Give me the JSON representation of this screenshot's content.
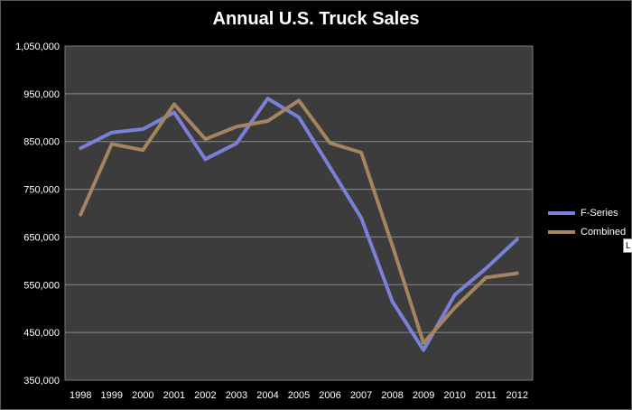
{
  "chart_data": {
    "type": "line",
    "title": "Annual U.S. Truck Sales",
    "x": [
      "1998",
      "1999",
      "2000",
      "2001",
      "2002",
      "2003",
      "2004",
      "2005",
      "2006",
      "2007",
      "2008",
      "2009",
      "2010",
      "2011",
      "2012"
    ],
    "series": [
      {
        "name": "F-Series",
        "color": "#7a80d8",
        "values": [
          836000,
          869000,
          876000,
          911000,
          813000,
          846000,
          940000,
          901000,
          796000,
          690000,
          515000,
          413000,
          529000,
          584000,
          645000
        ]
      },
      {
        "name": "Combined",
        "color": "#a48560",
        "values": [
          697000,
          845000,
          832000,
          928000,
          855000,
          881000,
          893000,
          936000,
          847000,
          827000,
          632000,
          428000,
          502000,
          565000,
          574000
        ]
      }
    ],
    "y_ticks": [
      "1,050,000",
      "950,000",
      "850,000",
      "750,000",
      "650,000",
      "550,000",
      "450,000",
      "350,000"
    ],
    "ylim": [
      350000,
      1050000
    ],
    "grid": true,
    "legend_position": "right",
    "plot_background": "#3c3c3c",
    "grid_color": "#8a8a8a"
  },
  "tooltip": {
    "text": "L"
  }
}
